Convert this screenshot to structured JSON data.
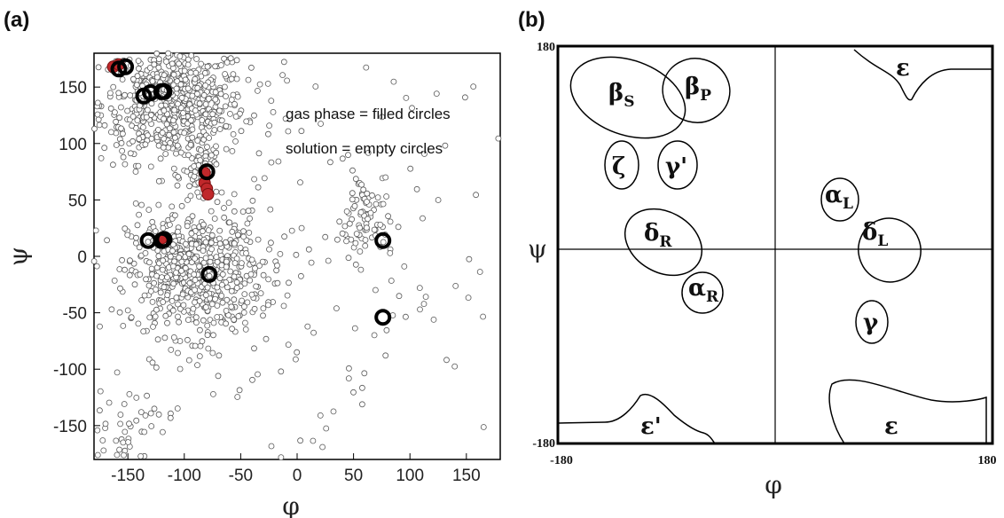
{
  "panel_a_label": "(a)",
  "panel_b_label": "(b)",
  "chart_data": [
    {
      "type": "scatter",
      "xlabel": "φ",
      "ylabel": "ψ",
      "xlim": [
        -180,
        180
      ],
      "ylim": [
        -180,
        180
      ],
      "xticks": [
        -150,
        -100,
        -50,
        0,
        50,
        100,
        150
      ],
      "yticks": [
        -150,
        -100,
        -50,
        0,
        50,
        100,
        150
      ],
      "annotations": [
        "gas phase = filled circles",
        "solution = empty circles"
      ],
      "series": [
        {
          "name": "gas phase = filled circles",
          "color": "#c0282b",
          "points": [
            [
              -163,
              168
            ],
            [
              -158,
              170
            ],
            [
              -120,
              16
            ],
            [
              -82,
              74
            ],
            [
              -82,
              65
            ],
            [
              -80,
              60
            ],
            [
              -79,
              55
            ]
          ]
        },
        {
          "name": "solution = empty circles",
          "color": "#000000",
          "points": [
            [
              -158,
              166
            ],
            [
              -152,
              168
            ],
            [
              -136,
              142
            ],
            [
              -130,
              145
            ],
            [
              -120,
              146
            ],
            [
              -118,
              146
            ],
            [
              -132,
              14
            ],
            [
              -120,
              14
            ],
            [
              -118,
              15
            ],
            [
              -80,
              75
            ],
            [
              -78,
              -16
            ],
            [
              76,
              14
            ],
            [
              76,
              -54
            ]
          ]
        }
      ],
      "density_clusters": [
        {
          "center": [
            -110,
            135
          ],
          "spread": [
            32,
            26
          ],
          "count": 650
        },
        {
          "center": [
            -90,
            -15
          ],
          "spread": [
            30,
            27
          ],
          "count": 600
        },
        {
          "center": [
            -85,
            70
          ],
          "spread": [
            8,
            12
          ],
          "count": 60
        },
        {
          "center": [
            60,
            35
          ],
          "spread": [
            10,
            22
          ],
          "count": 70
        },
        {
          "center": [
            -150,
            -150
          ],
          "spread": [
            20,
            18
          ],
          "count": 50
        },
        {
          "center": [
            0,
            0
          ],
          "spread": [
            110,
            110
          ],
          "count": 200
        }
      ]
    },
    {
      "type": "diagram",
      "xlabel": "φ",
      "ylabel": "ψ",
      "x_tick_labels": [
        "-180",
        "180"
      ],
      "y_tick_labels": [
        "180",
        "-180"
      ],
      "regions": [
        {
          "greek": "β",
          "sub": "S"
        },
        {
          "greek": "β",
          "sub": "P"
        },
        {
          "greek": "ζ",
          "sub": ""
        },
        {
          "greek": "γ'",
          "sub": ""
        },
        {
          "greek": "δ",
          "sub": "R"
        },
        {
          "greek": "α",
          "sub": "R"
        },
        {
          "greek": "α",
          "sub": "L"
        },
        {
          "greek": "δ",
          "sub": "L"
        },
        {
          "greek": "γ",
          "sub": ""
        },
        {
          "greek": "ε",
          "sub": ""
        },
        {
          "greek": "ε",
          "sub": ""
        },
        {
          "greek": "ε'",
          "sub": ""
        }
      ]
    }
  ]
}
